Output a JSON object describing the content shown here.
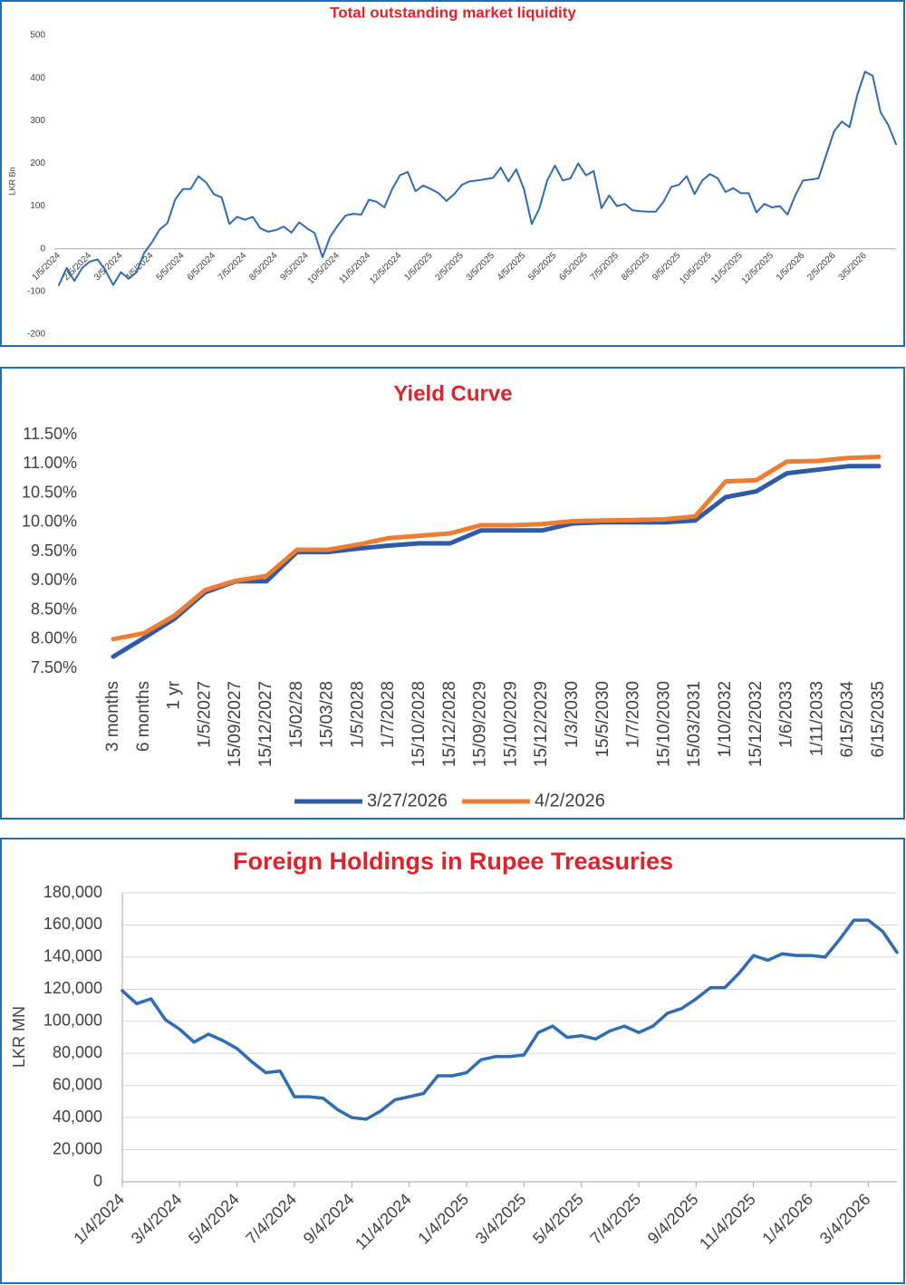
{
  "chart_data": [
    {
      "type": "line",
      "title": "Total outstanding market liquidity",
      "y_label": "LKR Bn",
      "color": "#2e6db4",
      "grid": false,
      "categories": [
        "1/5/2024",
        null,
        null,
        null,
        "2/5/2024",
        null,
        null,
        null,
        "3/5/2024",
        null,
        null,
        null,
        "4/5/2024",
        null,
        null,
        null,
        "5/5/2024",
        null,
        null,
        null,
        "6/5/2024",
        null,
        null,
        null,
        "7/5/2024",
        null,
        null,
        null,
        "8/5/2024",
        null,
        null,
        null,
        "9/5/2024",
        null,
        null,
        null,
        "10/5/2024",
        null,
        null,
        null,
        "11/5/2024",
        null,
        null,
        null,
        "12/5/2024",
        null,
        null,
        null,
        "1/5/2025",
        null,
        null,
        null,
        "2/5/2025",
        null,
        null,
        null,
        "3/5/2025",
        null,
        null,
        null,
        "4/5/2025",
        null,
        null,
        null,
        "5/5/2025",
        null,
        null,
        null,
        "6/5/2025",
        null,
        null,
        null,
        "7/5/2025",
        null,
        null,
        null,
        "8/5/2025",
        null,
        null,
        null,
        "9/5/2025",
        null,
        null,
        null,
        "10/5/2025",
        null,
        null,
        null,
        "11/5/2025",
        null,
        null,
        null,
        "12/5/2025",
        null,
        null,
        null,
        "1/5/2026",
        null,
        null,
        null,
        "2/5/2026",
        null,
        null,
        null,
        "3/5/2026",
        null,
        null,
        null,
        null
      ],
      "values": [
        -85,
        -45,
        -75,
        -45,
        -30,
        -25,
        -50,
        -85,
        -55,
        -70,
        -55,
        -10,
        15,
        45,
        60,
        115,
        140,
        140,
        170,
        155,
        128,
        120,
        58,
        75,
        68,
        75,
        48,
        40,
        44,
        52,
        38,
        62,
        48,
        37,
        -20,
        28,
        55,
        78,
        82,
        80,
        115,
        110,
        97,
        140,
        172,
        180,
        135,
        148,
        140,
        130,
        112,
        128,
        150,
        158,
        160,
        163,
        166,
        190,
        158,
        186,
        140,
        58,
        95,
        160,
        195,
        160,
        165,
        200,
        172,
        182,
        95,
        125,
        100,
        105,
        90,
        88,
        87,
        87,
        110,
        145,
        150,
        170,
        128,
        160,
        175,
        165,
        133,
        142,
        130,
        130,
        85,
        105,
        97,
        100,
        80,
        125,
        160,
        162,
        165,
        220,
        275,
        298,
        285,
        360,
        415,
        405,
        320,
        290,
        245
      ],
      "ylim": [
        -200,
        500
      ],
      "yticks": [
        -200,
        -100,
        0,
        100,
        200,
        300,
        400,
        500
      ]
    },
    {
      "type": "line",
      "title": "Yield Curve",
      "legend": "bottom",
      "grid": false,
      "categories": [
        "3 months",
        "6 months",
        "1 yr",
        "1/5/2027",
        "15/09/2027",
        "15/12/2027",
        "15/02/28",
        "15/03/28",
        "1/5/2028",
        "1/7/2028",
        "15/10/2028",
        "15/12/2028",
        "15/09/2029",
        "15/10/2029",
        "15/12/2029",
        "1/3/2030",
        "15/5/2030",
        "1/7/2030",
        "15/10/2030",
        "15/03/2031",
        "1/10/2032",
        "15/12/2032",
        "1/6/2033",
        "1/11/2033",
        "6/15/2034",
        "6/15/2035"
      ],
      "series": [
        {
          "name": "3/27/2026",
          "color": "#2f5aa6",
          "values": [
            7.7,
            8.02,
            8.35,
            8.8,
            8.99,
            8.99,
            9.49,
            9.49,
            9.55,
            9.6,
            9.64,
            9.64,
            9.86,
            9.86,
            9.86,
            9.98,
            10.0,
            10.0,
            10.0,
            10.03,
            10.43,
            10.53,
            10.84,
            10.9,
            10.96,
            10.96
          ]
        },
        {
          "name": "4/2/2026",
          "color": "#ed7d31",
          "values": [
            8.0,
            8.1,
            8.4,
            8.84,
            9.0,
            9.08,
            9.53,
            9.53,
            9.62,
            9.73,
            9.77,
            9.81,
            9.95,
            9.95,
            9.97,
            10.02,
            10.03,
            10.04,
            10.05,
            10.1,
            10.7,
            10.72,
            11.04,
            11.05,
            11.1,
            11.12
          ]
        }
      ],
      "ylim": [
        7.5,
        11.5
      ],
      "yticks": [
        {
          "value": 7.5,
          "label": "7.50%"
        },
        {
          "value": 8,
          "label": "8.00%"
        },
        {
          "value": 8.5,
          "label": "8.50%"
        },
        {
          "value": 9,
          "label": "9.00%"
        },
        {
          "value": 9.5,
          "label": "9.50%"
        },
        {
          "value": 10,
          "label": "10.00%"
        },
        {
          "value": 10.5,
          "label": "10.50%"
        },
        {
          "value": 11,
          "label": "11.00%"
        },
        {
          "value": 11.5,
          "label": "11.50%"
        }
      ]
    },
    {
      "type": "line",
      "title": "Foreign Holdings in Rupee Treasuries",
      "y_label": "LKR MN",
      "color": "#2e6db4",
      "grid": true,
      "categories": [
        "1/4/2024",
        null,
        null,
        null,
        "3/4/2024",
        null,
        null,
        null,
        "5/4/2024",
        null,
        null,
        null,
        "7/4/2024",
        null,
        null,
        null,
        "9/4/2024",
        null,
        null,
        null,
        "11/4/2024",
        null,
        null,
        null,
        "1/4/2025",
        null,
        null,
        null,
        "3/4/2025",
        null,
        null,
        null,
        "5/4/2025",
        null,
        null,
        null,
        "7/4/2025",
        null,
        null,
        null,
        "9/4/2025",
        null,
        null,
        null,
        "11/4/2025",
        null,
        null,
        null,
        "1/4/2026",
        null,
        null,
        null,
        "3/4/2026",
        null,
        null
      ],
      "values": [
        119000,
        111000,
        114000,
        101000,
        95000,
        87000,
        92000,
        88000,
        83000,
        75000,
        68000,
        69000,
        53000,
        53000,
        52000,
        45000,
        40000,
        39000,
        44000,
        51000,
        53000,
        55000,
        66000,
        66000,
        68000,
        76000,
        78000,
        78000,
        79000,
        93000,
        97000,
        90000,
        91000,
        89000,
        94000,
        97000,
        93000,
        97000,
        105000,
        108000,
        114000,
        121000,
        121000,
        130000,
        141000,
        138000,
        142000,
        141000,
        141000,
        140000,
        151000,
        163000,
        163000,
        156000,
        143000
      ],
      "ylim": [
        0,
        180000
      ],
      "yticks": [
        0,
        {
          "value": 20000,
          "label": "20,000"
        },
        {
          "value": 40000,
          "label": "40,000"
        },
        {
          "value": 60000,
          "label": "60,000"
        },
        {
          "value": 80000,
          "label": "80,000"
        },
        {
          "value": 100000,
          "label": "100,000"
        },
        {
          "value": 120000,
          "label": "120,000"
        },
        {
          "value": 140000,
          "label": "140,000"
        },
        {
          "value": 160000,
          "label": "160,000"
        },
        {
          "value": 180000,
          "label": "180,000"
        }
      ]
    }
  ]
}
